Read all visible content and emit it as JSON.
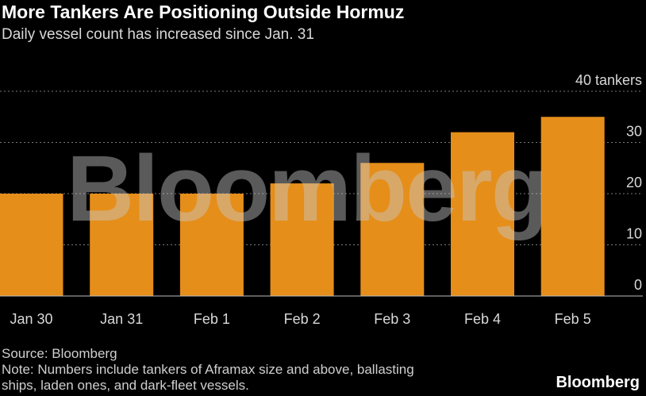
{
  "title": "More Tankers Are Positioning Outside Hormuz",
  "subtitle": "Daily vessel count has increased since Jan. 31",
  "watermark": "Bloomberg",
  "source": "Source: Bloomberg",
  "note_line1": "Note: Numbers include tankers of Aframax size and above, ballasting",
  "note_line2": "ships, laden ones, and dark-fleet vessels.",
  "brand": "Bloomberg",
  "colors": {
    "bar": "#e58e1a",
    "grid": "#7a7a7a",
    "background": "#000000",
    "text": "#d8d8d8"
  },
  "chart_data": {
    "type": "bar",
    "categories": [
      "Jan 30",
      "Jan 31",
      "Feb 1",
      "Feb 2",
      "Feb 3",
      "Feb 4",
      "Feb 5"
    ],
    "values": [
      20,
      20,
      20,
      22,
      26,
      32,
      35
    ],
    "ylim": [
      0,
      40
    ],
    "yticks": [
      0,
      10,
      20,
      30,
      40
    ],
    "ytick_labels": [
      "0",
      "10",
      "20",
      "30",
      "40 tankers"
    ],
    "grid": true,
    "grid_style": "dotted horizontal"
  }
}
